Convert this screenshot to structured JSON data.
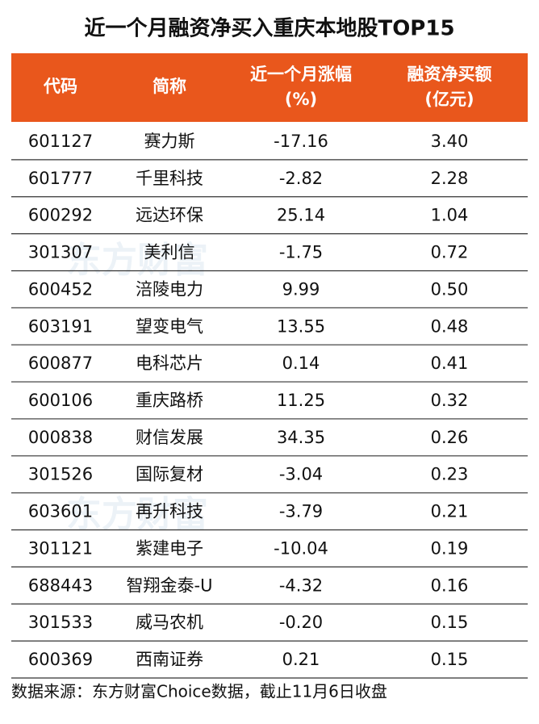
{
  "title": "近一个月融资净买入重庆本地股TOP15",
  "watermark": "东方财富",
  "table": {
    "header": [
      [
        "代码"
      ],
      [
        "简称"
      ],
      [
        "近一个月涨幅",
        "(%)"
      ],
      [
        "融资净买额",
        "(亿元)"
      ]
    ],
    "rows": [
      [
        "601127",
        "赛力斯",
        "-17.16",
        "3.40"
      ],
      [
        "601777",
        "千里科技",
        "-2.82",
        "2.28"
      ],
      [
        "600292",
        "远达环保",
        "25.14",
        "1.04"
      ],
      [
        "301307",
        "美利信",
        "-1.75",
        "0.72"
      ],
      [
        "600452",
        "涪陵电力",
        "9.99",
        "0.50"
      ],
      [
        "603191",
        "望变电气",
        "13.55",
        "0.48"
      ],
      [
        "600877",
        "电科芯片",
        "0.14",
        "0.41"
      ],
      [
        "600106",
        "重庆路桥",
        "11.25",
        "0.32"
      ],
      [
        "000838",
        "财信发展",
        "34.35",
        "0.26"
      ],
      [
        "301526",
        "国际复材",
        "-3.04",
        "0.23"
      ],
      [
        "603601",
        "再升科技",
        "-3.79",
        "0.21"
      ],
      [
        "301121",
        "紫建电子",
        "-10.04",
        "0.19"
      ],
      [
        "688443",
        "智翔金泰-U",
        "-4.32",
        "0.16"
      ],
      [
        "301533",
        "威马农机",
        "-0.20",
        "0.15"
      ],
      [
        "600369",
        "西南证券",
        "0.21",
        "0.15"
      ]
    ]
  },
  "source": "数据来源：东方财富Choice数据，截止11月6日收盘"
}
